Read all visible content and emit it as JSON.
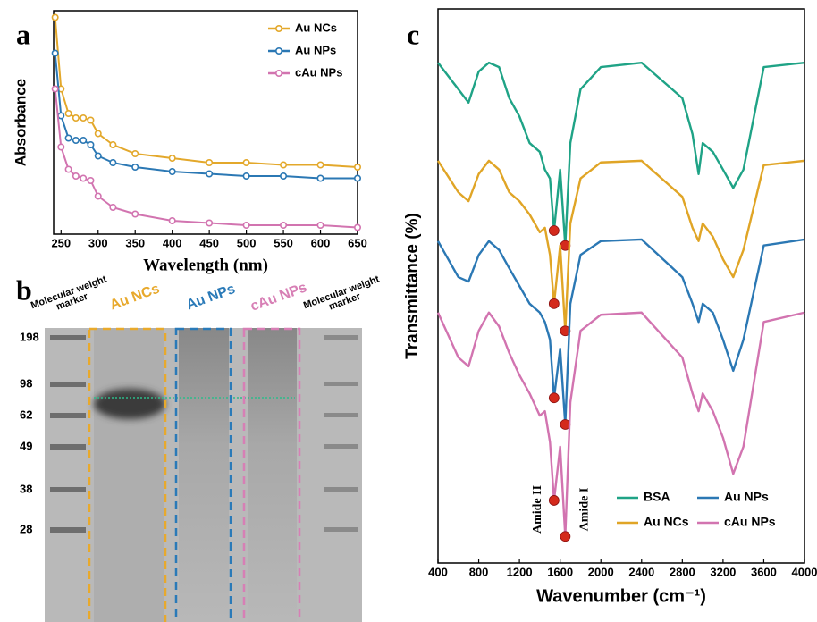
{
  "chart_data": [
    {
      "type": "line",
      "panel_label": "a",
      "x_label": "Wavelength (nm)",
      "y_label": "Absorbance",
      "x": [
        242,
        250,
        260,
        270,
        280,
        290,
        300,
        320,
        350,
        400,
        450,
        500,
        550,
        600,
        650
      ],
      "series": [
        {
          "name": "Au NCs",
          "color": "#e3a82b",
          "values": [
            97,
            65,
            54,
            52,
            52,
            51,
            45,
            40,
            36,
            34,
            32,
            32,
            31,
            31,
            30
          ]
        },
        {
          "name": "Au NPs",
          "color": "#2b78b4",
          "values": [
            81,
            53,
            43,
            42,
            42,
            40,
            35,
            32,
            30,
            28,
            27,
            26,
            26,
            25,
            25
          ]
        },
        {
          "name": "cAu NPs",
          "color": "#d274b0",
          "values": [
            65,
            39,
            29,
            26,
            25,
            24,
            17,
            12,
            9,
            6,
            5,
            4,
            4,
            4,
            3
          ]
        }
      ],
      "marker": "circle",
      "xlim": [
        240,
        650
      ],
      "xticks": [
        250,
        300,
        350,
        400,
        450,
        500,
        550,
        600,
        650
      ],
      "ylim": [
        0,
        100
      ],
      "legend": "upper right"
    },
    {
      "type": "line",
      "panel_label": "c",
      "x_label": "Wavenumber (cm⁻¹)",
      "y_label": "Transmittance (%)",
      "x": [
        400,
        600,
        700,
        800,
        900,
        1000,
        1100,
        1200,
        1300,
        1400,
        1450,
        1500,
        1540,
        1600,
        1650,
        1700,
        1800,
        2000,
        2400,
        2800,
        2900,
        2960,
        3000,
        3100,
        3200,
        3300,
        3400,
        3600,
        4000
      ],
      "series": [
        {
          "name": "BSA",
          "color": "#1fa386",
          "values": [
            90.3,
            85.5,
            83.1,
            88.7,
            90.3,
            89.5,
            83.9,
            80.6,
            75.8,
            74.2,
            71.0,
            69.4,
            60.0,
            71.0,
            57.3,
            75.8,
            85.5,
            89.5,
            90.3,
            83.9,
            77.4,
            70.2,
            75.8,
            74.2,
            71.0,
            67.7,
            71.0,
            89.5,
            90.3
          ]
        },
        {
          "name": "Au NCs",
          "color": "#e0a526",
          "values": [
            72.6,
            66.9,
            65.3,
            70.2,
            72.6,
            71.0,
            66.9,
            65.3,
            62.9,
            59.7,
            60.5,
            55.6,
            46.8,
            57.3,
            41.9,
            61.3,
            69.4,
            72.3,
            72.6,
            66.1,
            60.5,
            58.1,
            61.3,
            58.9,
            54.8,
            51.6,
            56.5,
            71.8,
            72.6
          ]
        },
        {
          "name": "Au NPs",
          "color": "#2b78b4",
          "values": [
            58.1,
            51.6,
            50.8,
            55.6,
            58.1,
            56.5,
            53.2,
            50.0,
            46.8,
            45.2,
            43.5,
            40.3,
            29.8,
            38.7,
            25.0,
            46.8,
            55.6,
            58.1,
            58.4,
            51.6,
            46.8,
            43.5,
            46.8,
            45.2,
            40.3,
            34.7,
            40.3,
            57.3,
            58.4
          ]
        },
        {
          "name": "cAu NPs",
          "color": "#d274b0",
          "values": [
            45.2,
            37.1,
            35.5,
            41.9,
            45.2,
            42.7,
            37.9,
            33.9,
            30.6,
            26.6,
            27.4,
            21.8,
            11.3,
            21.0,
            4.8,
            29.0,
            41.9,
            44.8,
            45.2,
            37.1,
            30.6,
            27.4,
            30.6,
            27.4,
            22.6,
            16.1,
            21.0,
            43.5,
            45.2
          ]
        }
      ],
      "annotations": [
        {
          "text": "Amide II",
          "x": 1540
        },
        {
          "text": "Amide I",
          "x": 1650
        }
      ],
      "annotation_marker_color": "#d42a1c",
      "xlim": [
        400,
        4000
      ],
      "xticks": [
        400,
        800,
        1200,
        1600,
        2000,
        2400,
        2800,
        3200,
        3600,
        4000
      ],
      "ylim": [
        0,
        100
      ],
      "legend": "lower right"
    }
  ],
  "gel": {
    "panel_label": "b",
    "lanes": [
      {
        "label": "Molecular weight marker"
      },
      {
        "label": "Au NCs",
        "color": "#e8a92c"
      },
      {
        "label": "Au NPs",
        "color": "#2a7ab8"
      },
      {
        "label": "cAu NPs",
        "color": "#d77fb5"
      },
      {
        "label": "Molecular weight marker"
      }
    ],
    "marker_sizes": [
      198,
      98,
      62,
      49,
      38,
      28
    ]
  }
}
